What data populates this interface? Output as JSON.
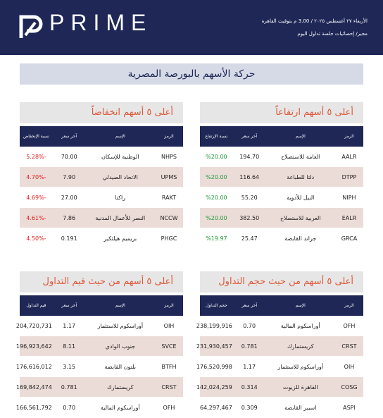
{
  "header": {
    "logo": "PRIME",
    "date_line": "الأربعاء ٢٧ أغسطس ٢٠٢٥ / 3.00 م بتوقيت القاهرة",
    "subtitle_line": "مجير/ إحصائيات جلسة تداول اليوم"
  },
  "title": "حركة الأسهم بالبورصة المصرية",
  "tables": [
    {
      "title": "أعلى ٥ أسهم ارتفاعاً",
      "value_color": "#1e9b3a",
      "columns": [
        "الرمز",
        "الإسم",
        "آخر سعر",
        "نسبة الإرتفاع"
      ],
      "rows": [
        [
          "AALR",
          "العامة للاستصلاح",
          "194.70",
          "%20.00"
        ],
        [
          "DTPP",
          "دلتا للطباعة",
          "116.64",
          "%20.00"
        ],
        [
          "NIPH",
          "النيل للأدوية",
          "55.20",
          "%20.00"
        ],
        [
          "EALR",
          "العربية للاستصلاح",
          "382.50",
          "%20.00"
        ],
        [
          "GRCA",
          "جراند القابضة",
          "25.47",
          "%19.97"
        ]
      ]
    },
    {
      "title": "أعلى ٥ أسهم انخفاضاً",
      "value_color": "#e02020",
      "columns": [
        "الرمز",
        "الإسم",
        "آخر سعر",
        "نسبة الإنخفاض"
      ],
      "rows": [
        [
          "NHPS",
          "الوطنية للإسكان",
          "70.00",
          "-5.28%"
        ],
        [
          "UPMS",
          "الاتحاد الصيدلي",
          "7.90",
          "-4.70%"
        ],
        [
          "RAKT",
          "راكتا",
          "27.00",
          "-4.69%"
        ],
        [
          "NCCW",
          "النصر للأعمال المدنية",
          "7.86",
          "-4.61%"
        ],
        [
          "PHGC",
          "بريميم هيلثكير",
          "0.191",
          "-4.50%"
        ]
      ]
    },
    {
      "title": "أعلى ٥ أسهم من حيث حجم التداول",
      "value_color": "#222222",
      "columns": [
        "الرمز",
        "الإسم",
        "آخر سعر",
        "حجم التداول"
      ],
      "rows": [
        [
          "OFH",
          "أوراسكوم المالية",
          "0.70",
          "238,199,916"
        ],
        [
          "CRST",
          "كريستمارك",
          "0.781",
          "231,930,457"
        ],
        [
          "OIH",
          "أوراسكوم للاستثمار",
          "1.17",
          "176,520,998"
        ],
        [
          "COSG",
          "القاهرة للزيوت",
          "0.314",
          "142,024,259"
        ],
        [
          "ASPI",
          "اسبير القابضة",
          "0.309",
          "64,297,467"
        ]
      ]
    },
    {
      "title": "أعلى ٥ أسهم من حيث قيم التداول",
      "value_color": "#222222",
      "columns": [
        "الرمز",
        "الإسم",
        "آخر سعر",
        "قيم التداول"
      ],
      "rows": [
        [
          "OIH",
          "أوراسكوم للاستثمار",
          "1.17",
          "204,720,731"
        ],
        [
          "SVCE",
          "جنوب الوادي",
          "8.11",
          "196,923,642"
        ],
        [
          "BTFH",
          "بلتون القابضة",
          "3.15",
          "176,616,012"
        ],
        [
          "CRST",
          "كريستمارك",
          "0.781",
          "169,842,474"
        ],
        [
          "OFH",
          "أوراسكوم المالية",
          "0.70",
          "166,561,792"
        ]
      ]
    }
  ]
}
